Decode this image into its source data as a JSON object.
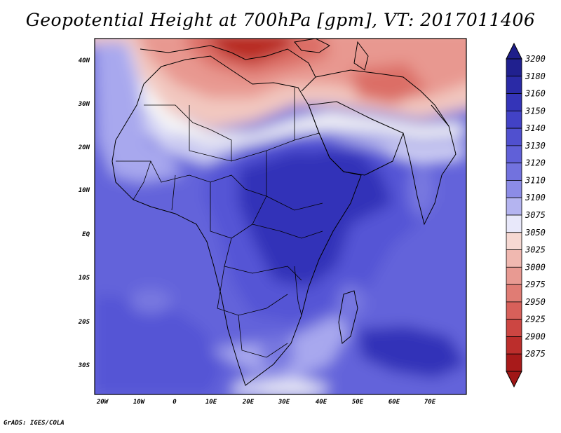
{
  "title": "Geopotential Height at 700hPa [gpm], VT: 2017011406",
  "footer": "GrADS: IGES/COLA",
  "map": {
    "lon_range": [
      -22,
      80
    ],
    "lat_range": [
      -36,
      45
    ],
    "lat_labels": [
      "40N",
      "30N",
      "20N",
      "10N",
      "EQ",
      "10S",
      "20S",
      "30S"
    ],
    "lon_labels": [
      "20W",
      "10W",
      "0",
      "10E",
      "20E",
      "30E",
      "40E",
      "50E",
      "60E",
      "70E"
    ],
    "field_colors": {
      "deep_blue": "#3030b8",
      "mid_blue": "#5555d5",
      "light_blue": "#7878e0",
      "pale_blue": "#a8a8ee",
      "very_pale": "#dcdcf8",
      "white": "#f8f8f8",
      "pale_red": "#f2c8c0",
      "light_red": "#e89890",
      "mid_red": "#dc6e66",
      "dark_red": "#b82a24"
    }
  },
  "colorbar": {
    "levels": [
      "3200",
      "3180",
      "3160",
      "3150",
      "3140",
      "3130",
      "3120",
      "3110",
      "3100",
      "3075",
      "3050",
      "3025",
      "3000",
      "2975",
      "2950",
      "2925",
      "2900",
      "2875"
    ],
    "colors": [
      "#20208f",
      "#2a2aa6",
      "#3434b8",
      "#4242c6",
      "#5050cf",
      "#6060d8",
      "#7272de",
      "#8c8ce6",
      "#b4b4f0",
      "#e8e8fa",
      "#f6d8d2",
      "#f0b8b0",
      "#e89a92",
      "#e07c74",
      "#d8605a",
      "#cc4642",
      "#bc2e2c",
      "#a81a1a"
    ],
    "top_arrow_color": "#1e1e8a",
    "bottom_arrow_color": "#a01616"
  }
}
